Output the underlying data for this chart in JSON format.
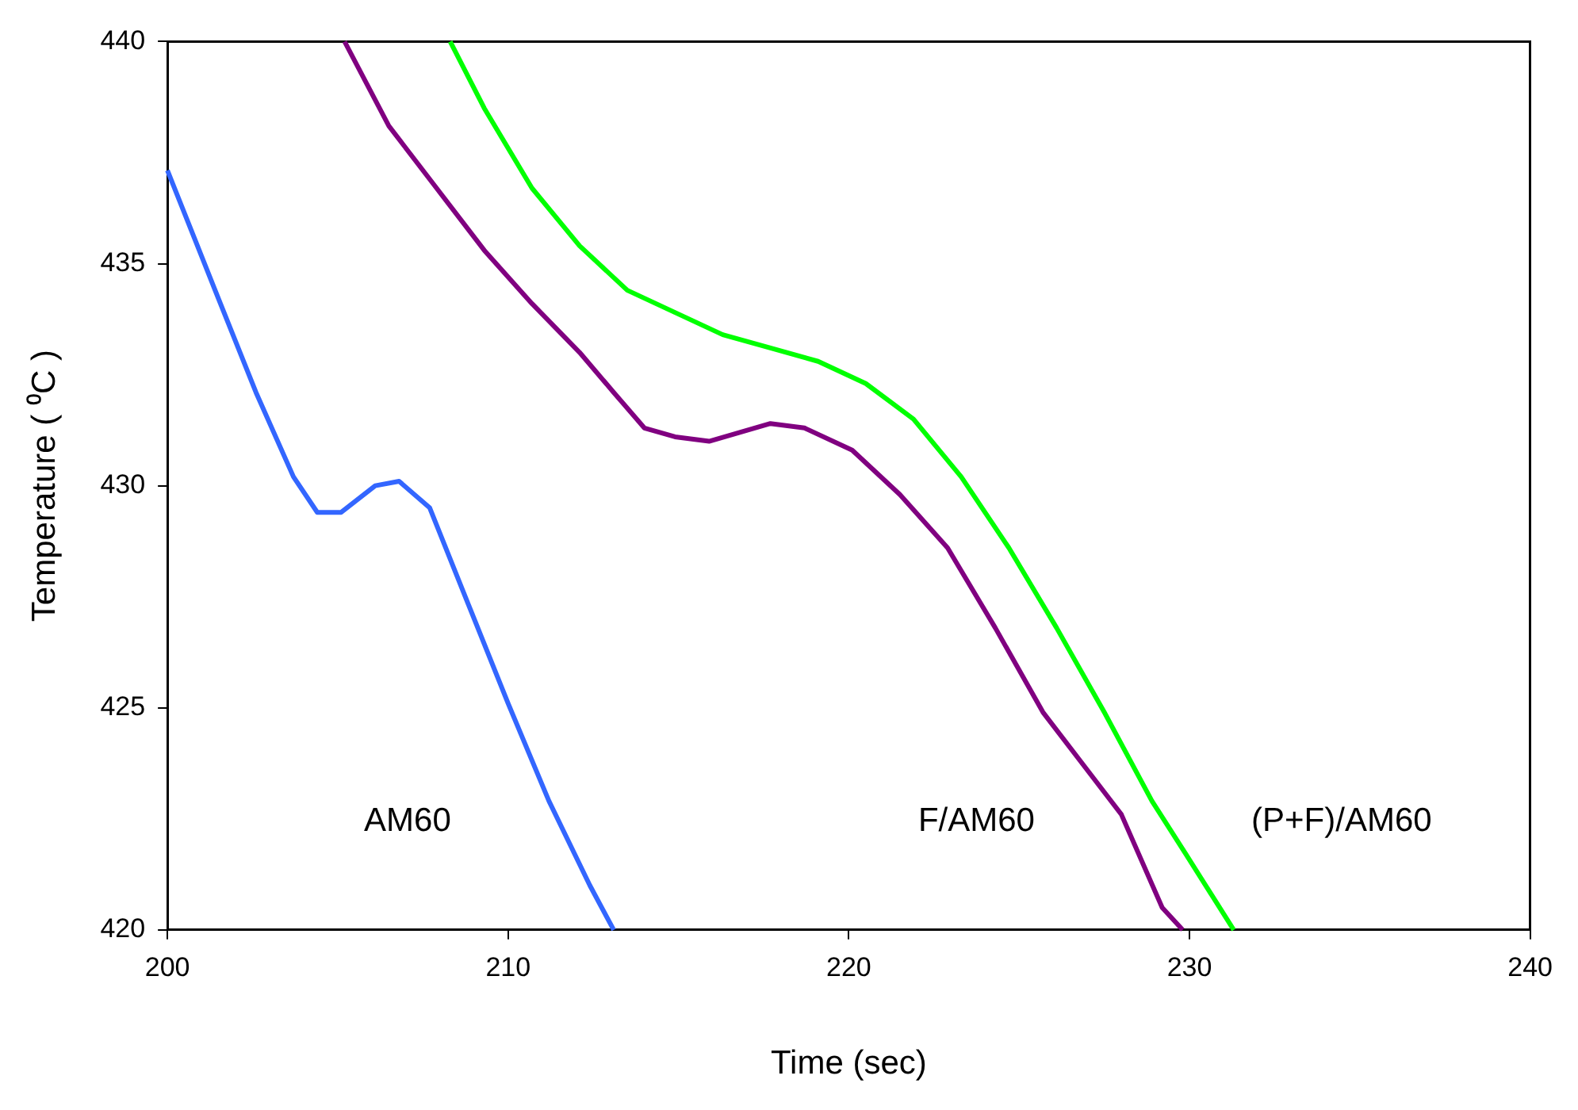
{
  "chart_data": {
    "type": "line",
    "xlabel": "Time (sec)",
    "ylabel": "Temperature ( ⁰C )",
    "xlim": [
      200,
      240
    ],
    "xticks": [
      200,
      210,
      220,
      230,
      240
    ],
    "ylim": [
      420,
      440
    ],
    "yticks": [
      420,
      425,
      430,
      435,
      440
    ],
    "grid": false,
    "legend": false,
    "marker": "none",
    "line_style": "solid",
    "series": [
      {
        "name": "AM60",
        "color": "#3366ff",
        "x": [
          200,
          201.4,
          202.6,
          203.7,
          204.4,
          205.1,
          206.1,
          206.8,
          207.7,
          208.9,
          210.0,
          211.2,
          212.4,
          213.1
        ],
        "values": [
          437.1,
          434.4,
          432.1,
          430.2,
          429.4,
          429.4,
          430.0,
          430.1,
          429.5,
          427.2,
          425.1,
          422.9,
          421.0,
          420
        ]
      },
      {
        "name": "F/AM60",
        "color": "#800080",
        "x": [
          205.2,
          206.5,
          207.9,
          209.3,
          210.7,
          212.1,
          213.1,
          214.0,
          214.9,
          215.9,
          216.8,
          217.7,
          218.7,
          220.1,
          221.5,
          222.9,
          224.3,
          225.7,
          227.1,
          228.0,
          229.2,
          229.8
        ],
        "values": [
          440,
          438.1,
          436.7,
          435.3,
          434.1,
          433.0,
          432.1,
          431.3,
          431.1,
          431.0,
          431.2,
          431.4,
          431.3,
          430.8,
          429.8,
          428.6,
          426.8,
          424.9,
          423.5,
          422.6,
          420.5,
          420
        ]
      },
      {
        "name": "(P+F)/AM60",
        "color": "#00ff00",
        "x": [
          208.3,
          209.3,
          210.7,
          212.1,
          213.5,
          214.9,
          216.3,
          217.7,
          219.1,
          220.5,
          221.9,
          223.3,
          224.7,
          226.1,
          227.5,
          228.9,
          229.9,
          231.3
        ],
        "values": [
          440,
          438.5,
          436.7,
          435.4,
          434.4,
          433.9,
          433.4,
          433.1,
          432.8,
          432.3,
          431.5,
          430.2,
          428.6,
          426.8,
          424.9,
          422.9,
          421.7,
          420
        ]
      }
    ]
  }
}
